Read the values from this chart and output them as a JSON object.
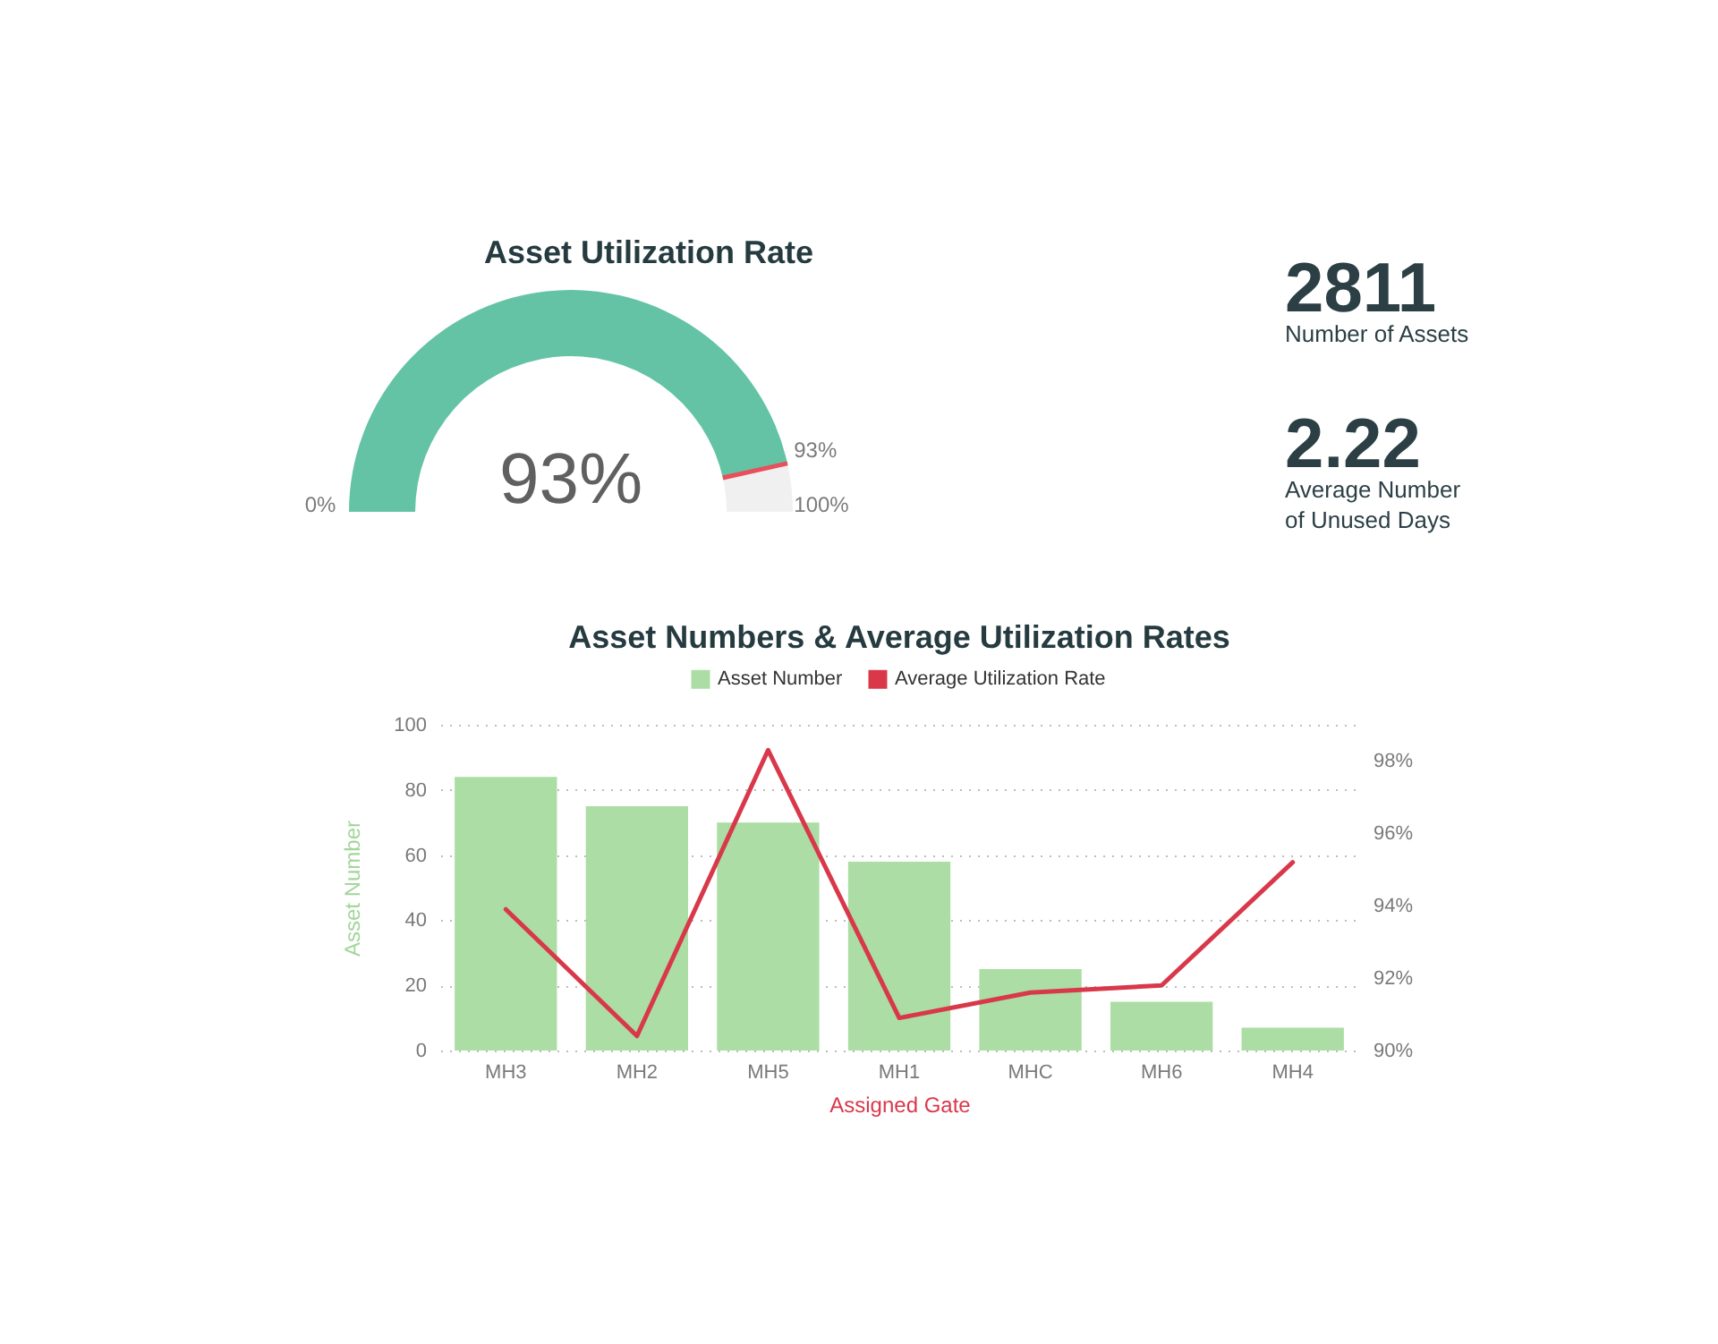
{
  "chart_data": [
    {
      "type": "donut",
      "title": "Asset Utilization Rate",
      "categories": [
        null,
        null
      ],
      "values": [
        93,
        7
      ],
      "colors": [
        "#64c3a5",
        "#f0f0f0"
      ],
      "value_labels": [
        "93%",
        null
      ],
      "annotations": [
        "0%",
        "93%",
        "100%"
      ]
    },
    {
      "type": "other",
      "annotations": [
        "2811",
        "Number of Assets",
        "2.22",
        "Average Number\nof Unused Days"
      ]
    },
    {
      "type": "bar",
      "title": "Asset Numbers & Average Utilization Rates",
      "categories": [
        "MH3",
        "MH2",
        "MH5",
        "MH1",
        "MHC",
        "MH6",
        "MH4"
      ],
      "series": [
        {
          "name": "Asset Number",
          "type": "bar",
          "color": "#abdda4",
          "values": [
            84,
            75,
            70,
            58,
            25,
            15,
            7
          ]
        },
        {
          "name": "Average Utilization Rate",
          "type": "line",
          "axis": "y2",
          "color": "#d9384a",
          "values": [
            93.9,
            90.4,
            98.3,
            90.9,
            91.6,
            91.8,
            95.2
          ]
        }
      ],
      "xlabel": "Assigned Gate",
      "ylabel": "Asset Number",
      "ylim": [
        0,
        100
      ],
      "yticks": [
        0,
        20,
        40,
        60,
        80,
        100
      ],
      "y2lim": [
        90,
        99
      ],
      "y2ticks": [
        {
          "value": 90,
          "label": "90%"
        },
        {
          "value": 92,
          "label": "92%"
        },
        {
          "value": 94,
          "label": "94%"
        },
        {
          "value": 96,
          "label": "96%"
        },
        {
          "value": 98,
          "label": "98%"
        }
      ],
      "grid": "y",
      "legend": "top"
    }
  ]
}
